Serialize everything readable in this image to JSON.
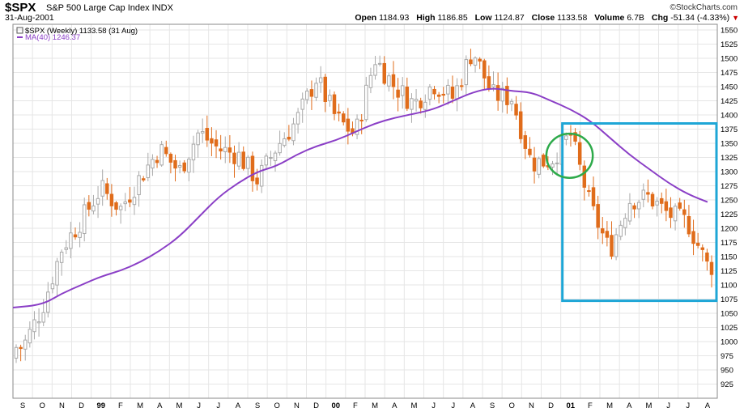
{
  "header": {
    "symbol": "$SPX",
    "name": "S&P 500 Large Cap Index INDX",
    "brand": "©StockCharts.com",
    "date": "31-Aug-2001",
    "open_label": "Open",
    "open_value": "1184.93",
    "high_label": "High",
    "high_value": "1186.85",
    "low_label": "Low",
    "low_value": "1124.87",
    "close_label": "Close",
    "close_value": "1133.58",
    "volume_label": "Volume",
    "volume_value": "6.7B",
    "chg_label": "Chg",
    "chg_value": "-51.34 (-4.33%)"
  },
  "legend": {
    "price": "$SPX (Weekly) 1133.58 (31 Aug)",
    "ma": "MA(40) 1246.37"
  },
  "colors": {
    "up": "#a9a9a9",
    "down": "#e06c1b",
    "ma": "#8a3ec6",
    "box": "#1ea6d6",
    "circle": "#2daa4a",
    "grid": "#e6e6e6",
    "chg_marker": "#cc0000"
  },
  "chart_data": {
    "type": "candlestick",
    "title": "$SPX S&P 500 Large Cap Index INDX",
    "ylim": [
      900,
      1560
    ],
    "yticks": [
      925,
      950,
      975,
      1000,
      1025,
      1050,
      1075,
      1100,
      1125,
      1150,
      1175,
      1200,
      1225,
      1250,
      1275,
      1300,
      1325,
      1350,
      1375,
      1400,
      1425,
      1450,
      1475,
      1500,
      1525,
      1550
    ],
    "x_month_labels": [
      "S",
      "O",
      "N",
      "D",
      "99",
      "F",
      "M",
      "A",
      "M",
      "J",
      "J",
      "A",
      "S",
      "O",
      "N",
      "D",
      "00",
      "F",
      "M",
      "A",
      "M",
      "J",
      "J",
      "A",
      "S",
      "O",
      "N",
      "D",
      "01",
      "F",
      "M",
      "A",
      "M",
      "J",
      "J",
      "A"
    ],
    "year_labels": [
      "99",
      "00",
      "01"
    ],
    "grid": true,
    "legend_position": "top-left",
    "series": [
      {
        "name": "$SPX (Weekly)",
        "type": "candlestick",
        "close_path": [
          {
            "month": "1998-09",
            "close": 990
          },
          {
            "month": "1998-10",
            "close": 1060
          },
          {
            "month": "1998-11",
            "close": 1165
          },
          {
            "month": "1998-12",
            "close": 1215
          },
          {
            "month": "1999-01",
            "close": 1270
          },
          {
            "month": "1999-02",
            "close": 1235
          },
          {
            "month": "1999-03",
            "close": 1290
          },
          {
            "month": "1999-04",
            "close": 1340
          },
          {
            "month": "1999-05",
            "close": 1300
          },
          {
            "month": "1999-06",
            "close": 1370
          },
          {
            "month": "1999-07",
            "close": 1340
          },
          {
            "month": "1999-08",
            "close": 1330
          },
          {
            "month": "1999-09",
            "close": 1285
          },
          {
            "month": "1999-10",
            "close": 1345
          },
          {
            "month": "1999-11",
            "close": 1390
          },
          {
            "month": "1999-12",
            "close": 1465
          },
          {
            "month": "2000-01",
            "close": 1395
          },
          {
            "month": "2000-02",
            "close": 1365
          },
          {
            "month": "2000-03",
            "close": 1500
          },
          {
            "month": "2000-04",
            "close": 1450
          },
          {
            "month": "2000-05",
            "close": 1420
          },
          {
            "month": "2000-06",
            "close": 1455
          },
          {
            "month": "2000-07",
            "close": 1430
          },
          {
            "month": "2000-08",
            "close": 1515
          },
          {
            "month": "2000-09",
            "close": 1435
          },
          {
            "month": "2000-10",
            "close": 1430
          },
          {
            "month": "2000-11",
            "close": 1315
          },
          {
            "month": "2000-12",
            "close": 1320
          },
          {
            "month": "2001-01",
            "close": 1365
          },
          {
            "month": "2001-02",
            "close": 1240
          },
          {
            "month": "2001-03",
            "close": 1160
          },
          {
            "month": "2001-04",
            "close": 1250
          },
          {
            "month": "2001-05",
            "close": 1255
          },
          {
            "month": "2001-06",
            "close": 1225
          },
          {
            "month": "2001-07",
            "close": 1210
          },
          {
            "month": "2001-08",
            "close": 1133.58
          }
        ]
      },
      {
        "name": "MA(40)",
        "type": "line",
        "points": [
          {
            "month": "1998-09",
            "value": 1060
          },
          {
            "month": "1998-10",
            "value": 1065
          },
          {
            "month": "1998-11",
            "value": 1085
          },
          {
            "month": "1998-12",
            "value": 1100
          },
          {
            "month": "1999-01",
            "value": 1115
          },
          {
            "month": "1999-02",
            "value": 1125
          },
          {
            "month": "1999-03",
            "value": 1140
          },
          {
            "month": "1999-04",
            "value": 1160
          },
          {
            "month": "1999-05",
            "value": 1185
          },
          {
            "month": "1999-06",
            "value": 1220
          },
          {
            "month": "1999-07",
            "value": 1255
          },
          {
            "month": "1999-08",
            "value": 1280
          },
          {
            "month": "1999-09",
            "value": 1300
          },
          {
            "month": "1999-10",
            "value": 1310
          },
          {
            "month": "1999-11",
            "value": 1330
          },
          {
            "month": "1999-12",
            "value": 1345
          },
          {
            "month": "2000-01",
            "value": 1355
          },
          {
            "month": "2000-02",
            "value": 1370
          },
          {
            "month": "2000-03",
            "value": 1385
          },
          {
            "month": "2000-04",
            "value": 1395
          },
          {
            "month": "2000-05",
            "value": 1402
          },
          {
            "month": "2000-06",
            "value": 1410
          },
          {
            "month": "2000-07",
            "value": 1425
          },
          {
            "month": "2000-08",
            "value": 1440
          },
          {
            "month": "2000-09",
            "value": 1448
          },
          {
            "month": "2000-10",
            "value": 1442
          },
          {
            "month": "2000-11",
            "value": 1440
          },
          {
            "month": "2000-12",
            "value": 1425
          },
          {
            "month": "2001-01",
            "value": 1410
          },
          {
            "month": "2001-02",
            "value": 1390
          },
          {
            "month": "2001-03",
            "value": 1360
          },
          {
            "month": "2001-04",
            "value": 1330
          },
          {
            "month": "2001-05",
            "value": 1305
          },
          {
            "month": "2001-06",
            "value": 1280
          },
          {
            "month": "2001-07",
            "value": 1260
          },
          {
            "month": "2001-08",
            "value": 1246.37
          }
        ]
      }
    ],
    "annotations": [
      {
        "type": "rectangle",
        "color": "box",
        "from_month": "2001-01",
        "to_month": "2001-08",
        "y_range": [
          1072,
          1385
        ]
      },
      {
        "type": "circle",
        "color": "circle",
        "center_month": "2001-01",
        "center_value": 1328,
        "radius_value": 50
      }
    ]
  }
}
